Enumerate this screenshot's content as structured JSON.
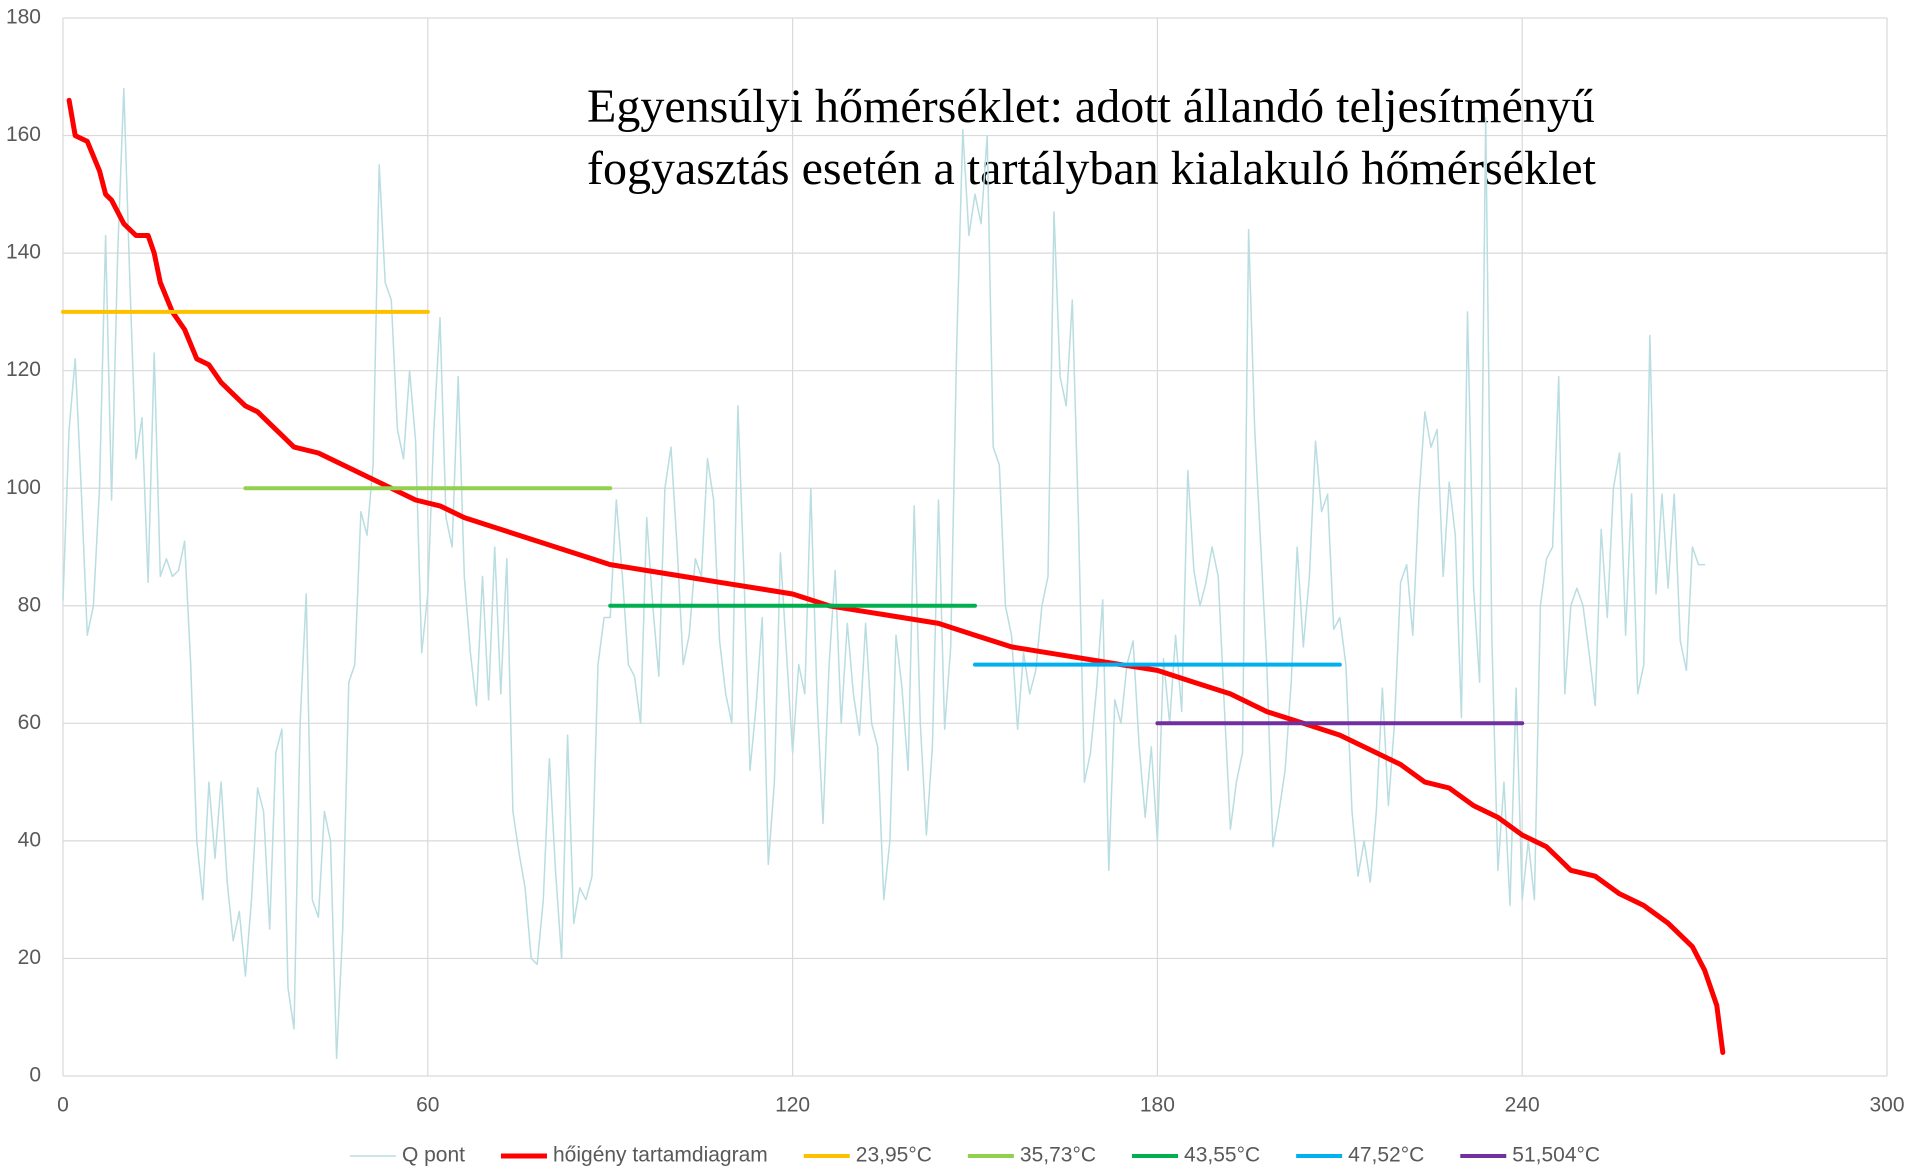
{
  "chart_data": {
    "type": "line",
    "annotation": [
      "Egyensúlyi hőmérséklet: adott állandó teljesítményű",
      "fogyasztás esetén a tartályban kialakuló hőmérséklet"
    ],
    "xlim": [
      0,
      300
    ],
    "xticks": [
      0,
      60,
      120,
      180,
      240,
      300
    ],
    "ylim": [
      0,
      180
    ],
    "yticks": [
      0,
      20,
      40,
      60,
      80,
      100,
      120,
      140,
      160,
      180
    ],
    "grid": true,
    "legend": "bottom",
    "series": [
      {
        "name": "Q pont",
        "color": "#b9dde0",
        "width": 1.5,
        "x": [
          0,
          1,
          2,
          3,
          4,
          5,
          6,
          7,
          8,
          9,
          10,
          11,
          12,
          13,
          14,
          15,
          16,
          17,
          18,
          19,
          20,
          21,
          22,
          23,
          24,
          25,
          26,
          27,
          28,
          29,
          30,
          31,
          32,
          33,
          34,
          35,
          36,
          37,
          38,
          39,
          40,
          41,
          42,
          43,
          44,
          45,
          46,
          47,
          48,
          49,
          50,
          51,
          52,
          53,
          54,
          55,
          56,
          57,
          58,
          59,
          60,
          61,
          62,
          63,
          64,
          65,
          66,
          67,
          68,
          69,
          70,
          71,
          72,
          73,
          74,
          75,
          76,
          77,
          78,
          79,
          80,
          81,
          82,
          83,
          84,
          85,
          86,
          87,
          88,
          89,
          90,
          91,
          92,
          93,
          94,
          95,
          96,
          97,
          98,
          99,
          100,
          101,
          102,
          103,
          104,
          105,
          106,
          107,
          108,
          109,
          110,
          111,
          112,
          113,
          114,
          115,
          116,
          117,
          118,
          119,
          120,
          121,
          122,
          123,
          124,
          125,
          126,
          127,
          128,
          129,
          130,
          131,
          132,
          133,
          134,
          135,
          136,
          137,
          138,
          139,
          140,
          141,
          142,
          143,
          144,
          145,
          146,
          147,
          148,
          149,
          150,
          151,
          152,
          153,
          154,
          155,
          156,
          157,
          158,
          159,
          160,
          161,
          162,
          163,
          164,
          165,
          166,
          167,
          168,
          169,
          170,
          171,
          172,
          173,
          174,
          175,
          176,
          177,
          178,
          179,
          180,
          181,
          182,
          183,
          184,
          185,
          186,
          187,
          188,
          189,
          190,
          191,
          192,
          193,
          194,
          195,
          196,
          197,
          198,
          199,
          200,
          201,
          202,
          203,
          204,
          205,
          206,
          207,
          208,
          209,
          210,
          211,
          212,
          213,
          214,
          215,
          216,
          217,
          218,
          219,
          220,
          221,
          222,
          223,
          224,
          225,
          226,
          227,
          228,
          229,
          230,
          231,
          232,
          233,
          234,
          235,
          236,
          237,
          238,
          239,
          240,
          241,
          242,
          243,
          244,
          245,
          246,
          247,
          248,
          249,
          250,
          251,
          252,
          253,
          254,
          255,
          256,
          257,
          258,
          259,
          260,
          261,
          262,
          263,
          264,
          265,
          266,
          267,
          268,
          269,
          270
        ],
        "values": [
          81,
          110,
          122,
          100,
          75,
          80,
          100,
          143,
          98,
          140,
          168,
          135,
          105,
          112,
          84,
          123,
          85,
          88,
          85,
          86,
          91,
          70,
          40,
          30,
          50,
          37,
          50,
          33,
          23,
          28,
          17,
          30,
          49,
          45,
          25,
          55,
          59,
          15,
          8,
          60,
          82,
          30,
          27,
          45,
          40,
          3,
          25,
          67,
          70,
          96,
          92,
          104,
          155,
          135,
          132,
          110,
          105,
          120,
          108,
          72,
          82,
          110,
          129,
          95,
          90,
          119,
          85,
          72,
          63,
          85,
          64,
          90,
          65,
          88,
          45,
          38,
          32,
          20,
          19,
          30,
          54,
          35,
          20,
          58,
          26,
          32,
          30,
          34,
          70,
          78,
          78,
          98,
          85,
          70,
          68,
          60,
          95,
          80,
          68,
          100,
          107,
          90,
          70,
          75,
          88,
          85,
          105,
          98,
          74,
          65,
          60,
          114,
          85,
          52,
          63,
          78,
          36,
          50,
          89,
          72,
          55,
          70,
          65,
          100,
          65,
          43,
          70,
          86,
          60,
          77,
          65,
          58,
          77,
          60,
          56,
          30,
          40,
          75,
          66,
          52,
          97,
          60,
          41,
          56,
          98,
          59,
          73,
          125,
          161,
          143,
          150,
          145,
          160,
          107,
          104,
          80,
          75,
          59,
          72,
          65,
          69,
          80,
          85,
          147,
          119,
          114,
          132,
          95,
          50,
          55,
          66,
          81,
          35,
          64,
          60,
          70,
          74,
          56,
          44,
          56,
          40,
          71,
          60,
          75,
          62,
          103,
          86,
          80,
          84,
          90,
          85,
          63,
          42,
          50,
          55,
          144,
          110,
          90,
          70,
          39,
          45,
          52,
          67,
          90,
          73,
          85,
          108,
          96,
          99,
          76,
          78,
          70,
          45,
          34,
          40,
          33,
          45,
          66,
          46,
          60,
          84,
          87,
          75,
          98,
          113,
          107,
          110,
          85,
          101,
          92,
          61,
          130,
          83,
          67,
          163,
          75,
          35,
          50,
          29,
          66,
          30,
          40,
          30,
          80,
          88,
          90,
          119,
          65,
          80,
          83,
          80,
          72,
          63,
          93,
          78,
          100,
          106,
          75,
          99,
          65,
          70,
          126,
          82,
          99,
          83,
          99,
          74,
          69,
          90,
          87,
          87
        ]
      },
      {
        "name": "hőigény tartamdiagram",
        "color": "#ff0000",
        "width": 5,
        "x": [
          1,
          2,
          4,
          6,
          7,
          8,
          10,
          12,
          14,
          15,
          16,
          18,
          20,
          22,
          24,
          26,
          28,
          30,
          32,
          34,
          36,
          38,
          42,
          46,
          50,
          54,
          58,
          62,
          66,
          72,
          78,
          84,
          90,
          96,
          102,
          108,
          114,
          120,
          126,
          132,
          138,
          144,
          150,
          156,
          162,
          168,
          174,
          180,
          186,
          192,
          198,
          204,
          210,
          216,
          220,
          224,
          228,
          232,
          236,
          240,
          244,
          246,
          248,
          252,
          256,
          260,
          264,
          268,
          270,
          272,
          273
        ],
        "values": [
          166,
          160,
          159,
          154,
          150,
          149,
          145,
          143,
          143,
          140,
          135,
          130,
          127,
          122,
          121,
          118,
          116,
          114,
          113,
          111,
          109,
          107,
          106,
          104,
          102,
          100,
          98,
          97,
          95,
          93,
          91,
          89,
          87,
          86,
          85,
          84,
          83,
          82,
          80,
          79,
          78,
          77,
          75,
          73,
          72,
          71,
          70,
          69,
          67,
          65,
          62,
          60,
          58,
          55,
          53,
          50,
          49,
          46,
          44,
          41,
          39,
          37,
          35,
          34,
          31,
          29,
          26,
          22,
          18,
          12,
          4
        ]
      },
      {
        "name": "23,95°C",
        "color": "#ffc000",
        "width": 4,
        "x": [
          0,
          60
        ],
        "values": [
          130,
          130
        ]
      },
      {
        "name": "35,73°C",
        "color": "#92d050",
        "width": 4,
        "x": [
          30,
          90
        ],
        "values": [
          100,
          100
        ]
      },
      {
        "name": "43,55°C",
        "color": "#00b050",
        "width": 4,
        "x": [
          90,
          150
        ],
        "values": [
          80,
          80
        ]
      },
      {
        "name": "47,52°C",
        "color": "#00b0f0",
        "width": 4,
        "x": [
          150,
          210
        ],
        "values": [
          70,
          70
        ]
      },
      {
        "name": "51,504°C",
        "color": "#7030a0",
        "width": 4,
        "x": [
          180,
          240
        ],
        "values": [
          60,
          60
        ]
      }
    ]
  }
}
